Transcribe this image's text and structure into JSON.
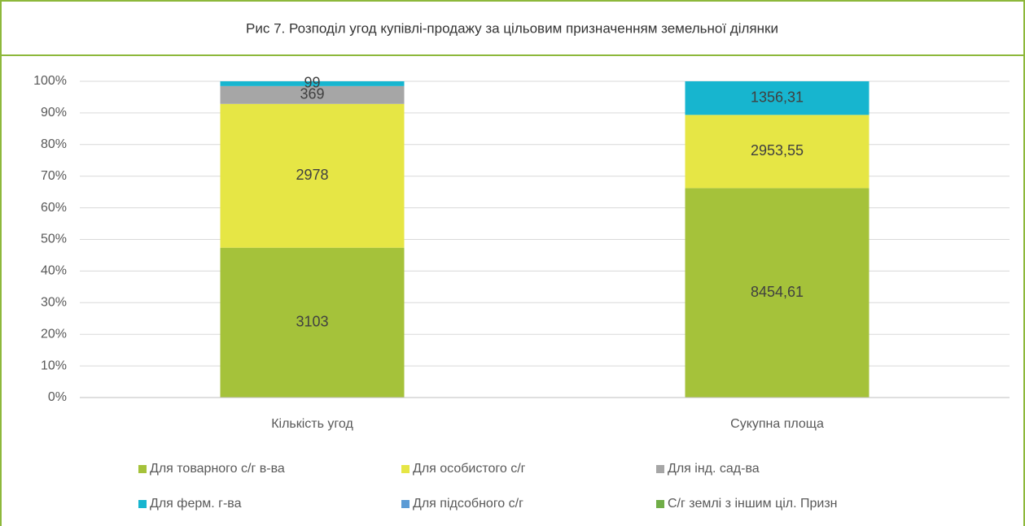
{
  "chart_data": {
    "type": "bar",
    "stacking": "percent",
    "title": "Рис 7. Розподіл угод купівлі-продажу за цільовим призначенням земельної ділянки",
    "categories": [
      "Кількість угод",
      "Сукупна площа"
    ],
    "series": [
      {
        "name": "Для товарного с/г в-ва",
        "color": "#a5c23a",
        "values": [
          3103,
          8454.61
        ],
        "value_labels": [
          "3103",
          "8454,61"
        ]
      },
      {
        "name": "Для особистого с/г",
        "color": "#e6e645",
        "values": [
          2978,
          2953.55
        ],
        "value_labels": [
          "2978",
          "2953,55"
        ]
      },
      {
        "name": "Для інд. сад-ва",
        "color": "#a6a6a6",
        "values": [
          369,
          0
        ],
        "value_labels": [
          "369",
          null
        ]
      },
      {
        "name": "Для ферм. г-ва",
        "color": "#17b5cf",
        "values": [
          99,
          1356.31
        ],
        "value_labels": [
          "99",
          "1356,31"
        ]
      },
      {
        "name": "Для підсобного с/г",
        "color": "#5b9bd5",
        "values": [
          0,
          0
        ],
        "value_labels": [
          null,
          null
        ]
      },
      {
        "name": "С/г землі з іншим ціл. Призн",
        "color": "#70ad47",
        "values": [
          0,
          0
        ],
        "value_labels": [
          null,
          null
        ]
      }
    ],
    "ylim": [
      0,
      100
    ],
    "yticks": [
      {
        "value": 0,
        "label": "0%"
      },
      {
        "value": 10,
        "label": "10%"
      },
      {
        "value": 20,
        "label": "20%"
      },
      {
        "value": 30,
        "label": "30%"
      },
      {
        "value": 40,
        "label": "40%"
      },
      {
        "value": 50,
        "label": "50%"
      },
      {
        "value": 60,
        "label": "60%"
      },
      {
        "value": 70,
        "label": "70%"
      },
      {
        "value": 80,
        "label": "80%"
      },
      {
        "value": 90,
        "label": "90%"
      },
      {
        "value": 100,
        "label": "100%"
      }
    ],
    "grid": true,
    "legend": "bottom"
  }
}
